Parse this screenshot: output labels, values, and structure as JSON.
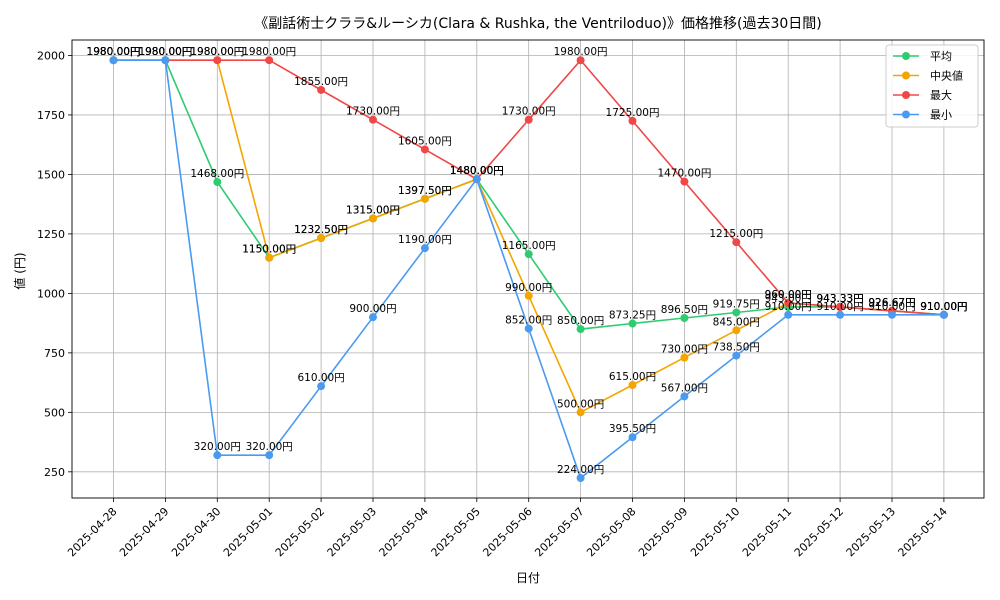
{
  "chart_data": {
    "type": "line",
    "title": "《副話術士クララ&ルーシカ(Clara & Rushka, the Ventriloduo)》価格推移(過去30日間)",
    "xlabel": "日付",
    "ylabel": "値 (円)",
    "ylim": [
      140,
      2065
    ],
    "yticks": [
      250,
      500,
      750,
      1000,
      1250,
      1500,
      1750,
      2000
    ],
    "ytick_labels": [
      "250",
      "500",
      "750",
      "1000",
      "1250",
      "1500",
      "1750",
      "2000"
    ],
    "label_suffix": "円",
    "grid": true,
    "legend_position": "top-right",
    "categories": [
      "2025-04-28",
      "2025-04-29",
      "2025-04-30",
      "2025-05-01",
      "2025-05-02",
      "2025-05-03",
      "2025-05-04",
      "2025-05-05",
      "2025-05-06",
      "2025-05-07",
      "2025-05-08",
      "2025-05-09",
      "2025-05-10",
      "2025-05-11",
      "2025-05-12",
      "2025-05-13",
      "2025-05-14"
    ],
    "series": [
      {
        "name": "平均",
        "color": "#2ecc71",
        "values": [
          1980,
          1980,
          1468,
          1150,
          1232.5,
          1315,
          1397.5,
          1480,
          1165,
          850,
          873.25,
          896.5,
          919.75,
          943,
          943.33,
          926.67,
          910
        ]
      },
      {
        "name": "中央値",
        "color": "#f5a500",
        "values": [
          1980,
          1980,
          1980,
          1150,
          1232.5,
          1315,
          1397.5,
          1480,
          990,
          500,
          615,
          730,
          845,
          960,
          943.33,
          926.67,
          910
        ]
      },
      {
        "name": "最大",
        "color": "#f04848",
        "values": [
          1980,
          1980,
          1980,
          1980,
          1855,
          1730,
          1605,
          1480,
          1730,
          1980,
          1725,
          1470,
          1215,
          960,
          943.33,
          926.67,
          910
        ]
      },
      {
        "name": "最小",
        "color": "#4a9af0",
        "values": [
          1980,
          1980,
          320,
          320,
          610,
          900,
          1190,
          1480,
          852,
          224,
          395.5,
          567,
          738.5,
          910,
          910,
          910,
          910
        ]
      }
    ]
  }
}
